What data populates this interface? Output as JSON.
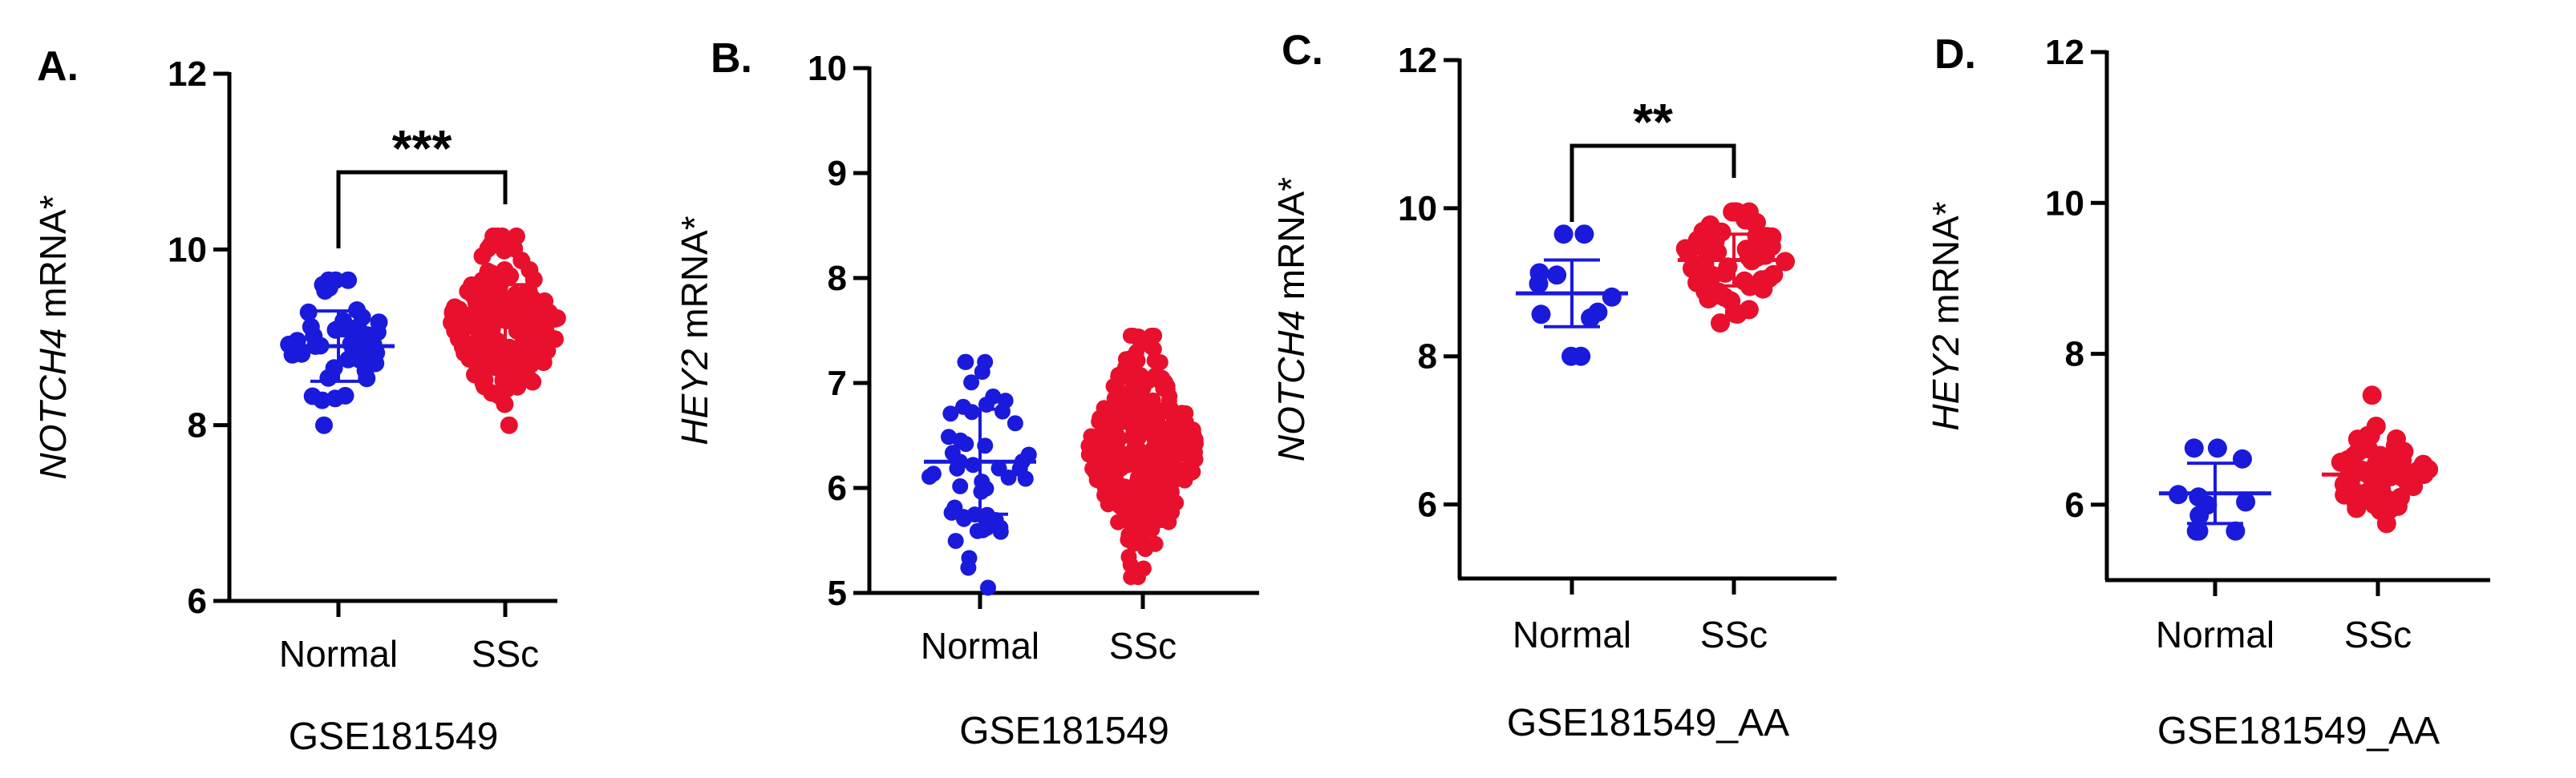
{
  "chart_data": [
    {
      "panel": "A.",
      "type": "scatter",
      "ylabel_gene": "NOTCH4",
      "ylabel_rest": " mRNA*",
      "xlabel": "GSE181549",
      "ylim": [
        6,
        12
      ],
      "yticks": [
        6,
        8,
        10,
        12
      ],
      "categories": [
        "Normal",
        "SSc"
      ],
      "series": [
        {
          "category": "Normal",
          "color": "#1a1adc",
          "n": 50,
          "mean": 8.9,
          "sd": 0.4,
          "min": 8.0,
          "max": 9.65
        },
        {
          "category": "SSc",
          "color": "#e8102c",
          "n": 200,
          "mean": 9.15,
          "sd": 0.45,
          "min": 8.0,
          "max": 10.15
        }
      ],
      "significance": "***"
    },
    {
      "panel": "B.",
      "type": "scatter",
      "ylabel_gene": "HEY2",
      "ylabel_rest": " mRNA*",
      "xlabel": "GSE181549",
      "ylim": [
        5,
        10
      ],
      "yticks": [
        5,
        6,
        7,
        8,
        9,
        10
      ],
      "categories": [
        "Normal",
        "SSc"
      ],
      "series": [
        {
          "category": "Normal",
          "color": "#1a1adc",
          "n": 50,
          "mean": 6.25,
          "sd": 0.5,
          "min": 5.05,
          "max": 7.2
        },
        {
          "category": "SSc",
          "color": "#e8102c",
          "n": 320,
          "mean": 6.35,
          "sd": 0.45,
          "min": 5.15,
          "max": 7.45
        }
      ],
      "significance": ""
    },
    {
      "panel": "C.",
      "type": "scatter",
      "ylabel_gene": "NOTCH4",
      "ylabel_rest": " mRNA*",
      "xlabel": "GSE181549_AA",
      "ylim": [
        5,
        12
      ],
      "yticks": [
        6,
        8,
        10,
        12
      ],
      "categories": [
        "Normal",
        "SSc"
      ],
      "series": [
        {
          "category": "Normal",
          "color": "#1a1adc",
          "n": 11,
          "mean": 8.85,
          "sd": 0.45,
          "min": 8.0,
          "max": 9.65
        },
        {
          "category": "SSc",
          "color": "#e8102c",
          "n": 60,
          "mean": 9.3,
          "sd": 0.35,
          "min": 8.45,
          "max": 9.95
        }
      ],
      "significance": "**"
    },
    {
      "panel": "D.",
      "type": "scatter",
      "ylabel_gene": "HEY2",
      "ylabel_rest": " mRNA*",
      "xlabel": "GSE181549_AA",
      "ylim": [
        5,
        12
      ],
      "yticks": [
        6,
        8,
        10,
        12
      ],
      "categories": [
        "Normal",
        "SSc"
      ],
      "series": [
        {
          "category": "Normal",
          "color": "#1a1adc",
          "n": 11,
          "mean": 6.15,
          "sd": 0.4,
          "min": 5.65,
          "max": 6.75
        },
        {
          "category": "SSc",
          "color": "#e8102c",
          "n": 60,
          "mean": 6.4,
          "sd": 0.3,
          "min": 5.75,
          "max": 7.45
        }
      ],
      "significance": ""
    }
  ]
}
